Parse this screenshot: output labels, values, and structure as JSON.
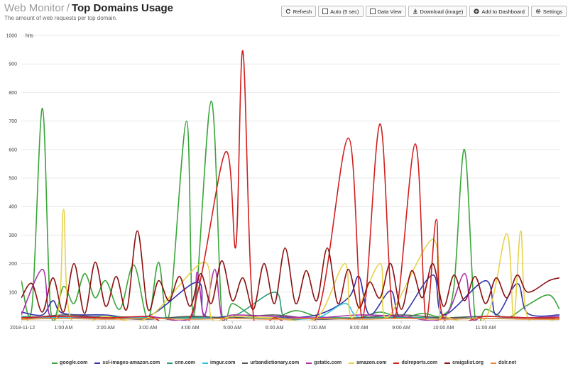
{
  "header": {
    "breadcrumb": "Web Monitor",
    "separator": "/",
    "title": "Top Domains Usage",
    "subtitle": "The amount of web requests per top domain."
  },
  "toolbar": {
    "refresh": "Refresh",
    "auto": "Auto (5 sec)",
    "data_view": "Data View",
    "download": "Download (image)",
    "dashboard": "Add to Dashboard",
    "settings": "Settings"
  },
  "chart_data": {
    "type": "line",
    "ylabel": "hits",
    "ylim": [
      0,
      1000
    ],
    "yticks": [
      100,
      200,
      300,
      400,
      500,
      600,
      700,
      800,
      900,
      1000
    ],
    "x_range": [
      "00:00",
      "12:45"
    ],
    "x_ticks": [
      {
        "t": "00:00",
        "label": "2018-11-12"
      },
      {
        "t": "01:00",
        "label": "1:00 AM"
      },
      {
        "t": "02:00",
        "label": "2:00 AM"
      },
      {
        "t": "03:00",
        "label": "3:00 AM"
      },
      {
        "t": "04:00",
        "label": "4:00 AM"
      },
      {
        "t": "05:00",
        "label": "5:00 AM"
      },
      {
        "t": "06:00",
        "label": "6:00 AM"
      },
      {
        "t": "07:00",
        "label": "7:00 AM"
      },
      {
        "t": "08:00",
        "label": "8:00 AM"
      },
      {
        "t": "09:00",
        "label": "9:00 AM"
      },
      {
        "t": "10:00",
        "label": "10:00 AM"
      },
      {
        "t": "11:00",
        "label": "11:00 AM"
      }
    ],
    "grid": true,
    "legend_position": "bottom",
    "series": [
      {
        "name": "google.com",
        "color": "#3aa53a",
        "points": [
          [
            "00:00",
            140
          ],
          [
            "00:15",
            45
          ],
          [
            "00:30",
            745
          ],
          [
            "00:42",
            30
          ],
          [
            "01:00",
            120
          ],
          [
            "01:15",
            60
          ],
          [
            "01:30",
            165
          ],
          [
            "01:45",
            80
          ],
          [
            "02:00",
            140
          ],
          [
            "02:20",
            40
          ],
          [
            "02:40",
            195
          ],
          [
            "03:00",
            5
          ],
          [
            "03:15",
            205
          ],
          [
            "03:30",
            20
          ],
          [
            "03:55",
            700
          ],
          [
            "04:05",
            15
          ],
          [
            "04:30",
            770
          ],
          [
            "04:45",
            25
          ],
          [
            "05:00",
            60
          ],
          [
            "05:30",
            15
          ],
          [
            "06:00",
            10
          ],
          [
            "06:30",
            35
          ],
          [
            "07:00",
            15
          ],
          [
            "07:30",
            10
          ],
          [
            "08:00",
            10
          ],
          [
            "08:30",
            30
          ],
          [
            "09:00",
            10
          ],
          [
            "09:30",
            25
          ],
          [
            "10:00",
            20
          ],
          [
            "10:15",
            120
          ],
          [
            "10:30",
            600
          ],
          [
            "10:45",
            10
          ],
          [
            "11:00",
            40
          ],
          [
            "11:30",
            10
          ],
          [
            "12:00",
            55
          ],
          [
            "12:30",
            90
          ],
          [
            "12:45",
            40
          ]
        ]
      },
      {
        "name": "ssl-images-amazon.com",
        "color": "#3333aa",
        "points": [
          [
            "00:00",
            30
          ],
          [
            "00:30",
            20
          ],
          [
            "00:45",
            70
          ],
          [
            "01:00",
            25
          ],
          [
            "02:00",
            20
          ],
          [
            "03:00",
            15
          ],
          [
            "04:10",
            135
          ],
          [
            "04:20",
            20
          ],
          [
            "05:00",
            15
          ],
          [
            "06:00",
            10
          ],
          [
            "07:00",
            20
          ],
          [
            "07:45",
            80
          ],
          [
            "08:00",
            155
          ],
          [
            "08:15",
            20
          ],
          [
            "08:45",
            105
          ],
          [
            "09:00",
            15
          ],
          [
            "09:45",
            160
          ],
          [
            "10:00",
            20
          ],
          [
            "11:00",
            140
          ],
          [
            "11:15",
            20
          ],
          [
            "11:45",
            130
          ],
          [
            "12:00",
            25
          ],
          [
            "12:45",
            20
          ]
        ]
      },
      {
        "name": "cnn.com",
        "color": "#2a9c78",
        "points": [
          [
            "00:00",
            15
          ],
          [
            "01:00",
            10
          ],
          [
            "02:00",
            15
          ],
          [
            "03:00",
            10
          ],
          [
            "04:00",
            12
          ],
          [
            "05:00",
            15
          ],
          [
            "06:00",
            100
          ],
          [
            "06:15",
            10
          ],
          [
            "07:00",
            10
          ],
          [
            "08:00",
            10
          ],
          [
            "09:00",
            12
          ],
          [
            "10:00",
            10
          ],
          [
            "11:00",
            15
          ],
          [
            "12:00",
            10
          ],
          [
            "12:45",
            10
          ]
        ]
      },
      {
        "name": "imgur.com",
        "color": "#33c3dd",
        "points": [
          [
            "00:00",
            10
          ],
          [
            "01:00",
            12
          ],
          [
            "02:00",
            8
          ],
          [
            "03:00",
            10
          ],
          [
            "04:00",
            8
          ],
          [
            "05:00",
            10
          ],
          [
            "06:00",
            8
          ],
          [
            "07:00",
            10
          ],
          [
            "07:40",
            60
          ],
          [
            "08:00",
            12
          ],
          [
            "09:00",
            8
          ],
          [
            "10:00",
            10
          ],
          [
            "11:00",
            8
          ],
          [
            "12:00",
            10
          ],
          [
            "12:45",
            8
          ]
        ]
      },
      {
        "name": "urbandictionary.com",
        "color": "#555555",
        "points": [
          [
            "00:00",
            5
          ],
          [
            "01:00",
            20
          ],
          [
            "02:00",
            10
          ],
          [
            "03:00",
            5
          ],
          [
            "04:00",
            15
          ],
          [
            "05:00",
            10
          ],
          [
            "06:00",
            20
          ],
          [
            "07:00",
            5
          ],
          [
            "08:00",
            10
          ],
          [
            "09:00",
            20
          ],
          [
            "10:00",
            10
          ],
          [
            "11:00",
            15
          ],
          [
            "12:00",
            10
          ],
          [
            "12:45",
            5
          ]
        ]
      },
      {
        "name": "gstatic.com",
        "color": "#aa33aa",
        "points": [
          [
            "00:00",
            20
          ],
          [
            "00:30",
            180
          ],
          [
            "00:40",
            20
          ],
          [
            "01:00",
            15
          ],
          [
            "02:00",
            10
          ],
          [
            "03:00",
            15
          ],
          [
            "04:00",
            10
          ],
          [
            "04:10",
            170
          ],
          [
            "04:20",
            15
          ],
          [
            "04:35",
            180
          ],
          [
            "04:45",
            10
          ],
          [
            "05:00",
            20
          ],
          [
            "06:00",
            15
          ],
          [
            "07:00",
            10
          ],
          [
            "08:00",
            20
          ],
          [
            "09:00",
            15
          ],
          [
            "10:00",
            10
          ],
          [
            "10:30",
            165
          ],
          [
            "10:40",
            10
          ],
          [
            "11:00",
            15
          ],
          [
            "12:00",
            10
          ],
          [
            "12:45",
            15
          ]
        ]
      },
      {
        "name": "amazon.com",
        "color": "#e6d24a",
        "points": [
          [
            "00:00",
            10
          ],
          [
            "00:50",
            10
          ],
          [
            "01:00",
            390
          ],
          [
            "01:10",
            10
          ],
          [
            "02:00",
            15
          ],
          [
            "03:00",
            10
          ],
          [
            "04:20",
            205
          ],
          [
            "04:30",
            10
          ],
          [
            "05:00",
            15
          ],
          [
            "06:00",
            10
          ],
          [
            "07:00",
            10
          ],
          [
            "07:40",
            200
          ],
          [
            "07:50",
            10
          ],
          [
            "08:30",
            200
          ],
          [
            "08:40",
            10
          ],
          [
            "09:45",
            285
          ],
          [
            "09:55",
            10
          ],
          [
            "10:00",
            15
          ],
          [
            "11:00",
            10
          ],
          [
            "11:30",
            305
          ],
          [
            "11:40",
            10
          ],
          [
            "11:50",
            315
          ],
          [
            "12:00",
            10
          ],
          [
            "12:45",
            10
          ]
        ]
      },
      {
        "name": "dslreports.com",
        "color": "#d02020",
        "points": [
          [
            "00:00",
            10
          ],
          [
            "01:00",
            15
          ],
          [
            "02:00",
            10
          ],
          [
            "03:00",
            15
          ],
          [
            "04:00",
            10
          ],
          [
            "04:50",
            590
          ],
          [
            "05:05",
            260
          ],
          [
            "05:15",
            945
          ],
          [
            "05:30",
            15
          ],
          [
            "06:00",
            10
          ],
          [
            "07:00",
            15
          ],
          [
            "07:45",
            640
          ],
          [
            "08:05",
            10
          ],
          [
            "08:30",
            690
          ],
          [
            "08:50",
            10
          ],
          [
            "09:20",
            620
          ],
          [
            "09:35",
            10
          ],
          [
            "09:50",
            355
          ],
          [
            "10:00",
            10
          ],
          [
            "11:00",
            15
          ],
          [
            "12:00",
            10
          ],
          [
            "12:45",
            10
          ]
        ]
      },
      {
        "name": "craigslist.org",
        "color": "#8b1010",
        "points": [
          [
            "00:00",
            80
          ],
          [
            "00:15",
            130
          ],
          [
            "00:30",
            30
          ],
          [
            "00:45",
            150
          ],
          [
            "01:00",
            30
          ],
          [
            "01:15",
            200
          ],
          [
            "01:30",
            25
          ],
          [
            "01:45",
            205
          ],
          [
            "02:00",
            50
          ],
          [
            "02:15",
            155
          ],
          [
            "02:30",
            40
          ],
          [
            "02:45",
            315
          ],
          [
            "03:00",
            40
          ],
          [
            "03:15",
            140
          ],
          [
            "03:30",
            70
          ],
          [
            "03:45",
            155
          ],
          [
            "04:00",
            50
          ],
          [
            "04:15",
            165
          ],
          [
            "04:30",
            60
          ],
          [
            "04:45",
            210
          ],
          [
            "05:00",
            70
          ],
          [
            "05:15",
            150
          ],
          [
            "05:30",
            40
          ],
          [
            "05:45",
            200
          ],
          [
            "06:00",
            60
          ],
          [
            "06:15",
            255
          ],
          [
            "06:30",
            60
          ],
          [
            "06:45",
            175
          ],
          [
            "07:00",
            70
          ],
          [
            "07:15",
            255
          ],
          [
            "07:30",
            60
          ],
          [
            "07:45",
            180
          ],
          [
            "08:00",
            45
          ],
          [
            "08:15",
            135
          ],
          [
            "08:30",
            80
          ],
          [
            "08:45",
            200
          ],
          [
            "09:00",
            40
          ],
          [
            "09:15",
            175
          ],
          [
            "09:30",
            80
          ],
          [
            "09:45",
            200
          ],
          [
            "10:00",
            50
          ],
          [
            "10:15",
            160
          ],
          [
            "10:30",
            70
          ],
          [
            "10:45",
            155
          ],
          [
            "11:00",
            60
          ],
          [
            "11:15",
            150
          ],
          [
            "11:30",
            80
          ],
          [
            "11:45",
            160
          ],
          [
            "12:00",
            100
          ],
          [
            "12:30",
            140
          ],
          [
            "12:45",
            150
          ]
        ]
      },
      {
        "name": "dslr.net",
        "color": "#e88a3a",
        "points": [
          [
            "00:00",
            5
          ],
          [
            "01:00",
            8
          ],
          [
            "02:00",
            5
          ],
          [
            "03:00",
            8
          ],
          [
            "04:00",
            5
          ],
          [
            "05:00",
            8
          ],
          [
            "06:00",
            5
          ],
          [
            "07:00",
            8
          ],
          [
            "08:00",
            5
          ],
          [
            "09:00",
            8
          ],
          [
            "10:00",
            5
          ],
          [
            "11:00",
            8
          ],
          [
            "12:00",
            5
          ],
          [
            "12:45",
            5
          ]
        ]
      }
    ]
  },
  "icons": {
    "refresh": "refresh-icon",
    "auto": "checkbox-icon",
    "data_view": "checkbox-icon",
    "download": "download-icon",
    "dashboard": "plus-circle-icon",
    "settings": "gear-icon"
  }
}
